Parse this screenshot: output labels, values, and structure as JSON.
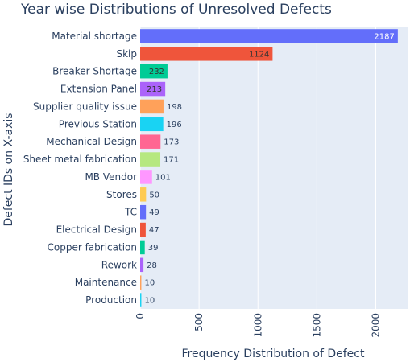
{
  "chart_data": {
    "type": "bar",
    "orientation": "horizontal",
    "title": "Year wise Distributions of Unresolved Defects",
    "xlabel": "Frequency Distribution of Defect",
    "ylabel": "Defect IDs on X-axis",
    "xlim": [
      0,
      2270
    ],
    "x_ticks": [
      0,
      500,
      1000,
      1500,
      2000
    ],
    "grid": true,
    "categories": [
      "Material shortage",
      "Skip",
      "Breaker Shortage",
      "Extension Panel",
      "Supplier quality issue",
      "Previous Station",
      "Mechanical Design",
      "Sheet metal fabrication",
      "MB Vendor",
      "Stores",
      "TC",
      "Electrical Design",
      "Copper fabrication",
      "Rework",
      "Maintenance",
      "Production"
    ],
    "values": [
      2187,
      1124,
      232,
      213,
      198,
      196,
      173,
      171,
      101,
      50,
      49,
      47,
      39,
      28,
      10,
      10
    ],
    "colors": [
      "#636efa",
      "#ef553b",
      "#00cc96",
      "#ab63fa",
      "#ffa15a",
      "#19d3f3",
      "#ff6692",
      "#b6e880",
      "#ff97ff",
      "#fecb52",
      "#636efa",
      "#ef553b",
      "#00cc96",
      "#ab63fa",
      "#ffa15a",
      "#19d3f3"
    ],
    "plot_background": "#e5ecf6",
    "text_color": "#2a3f5f"
  }
}
